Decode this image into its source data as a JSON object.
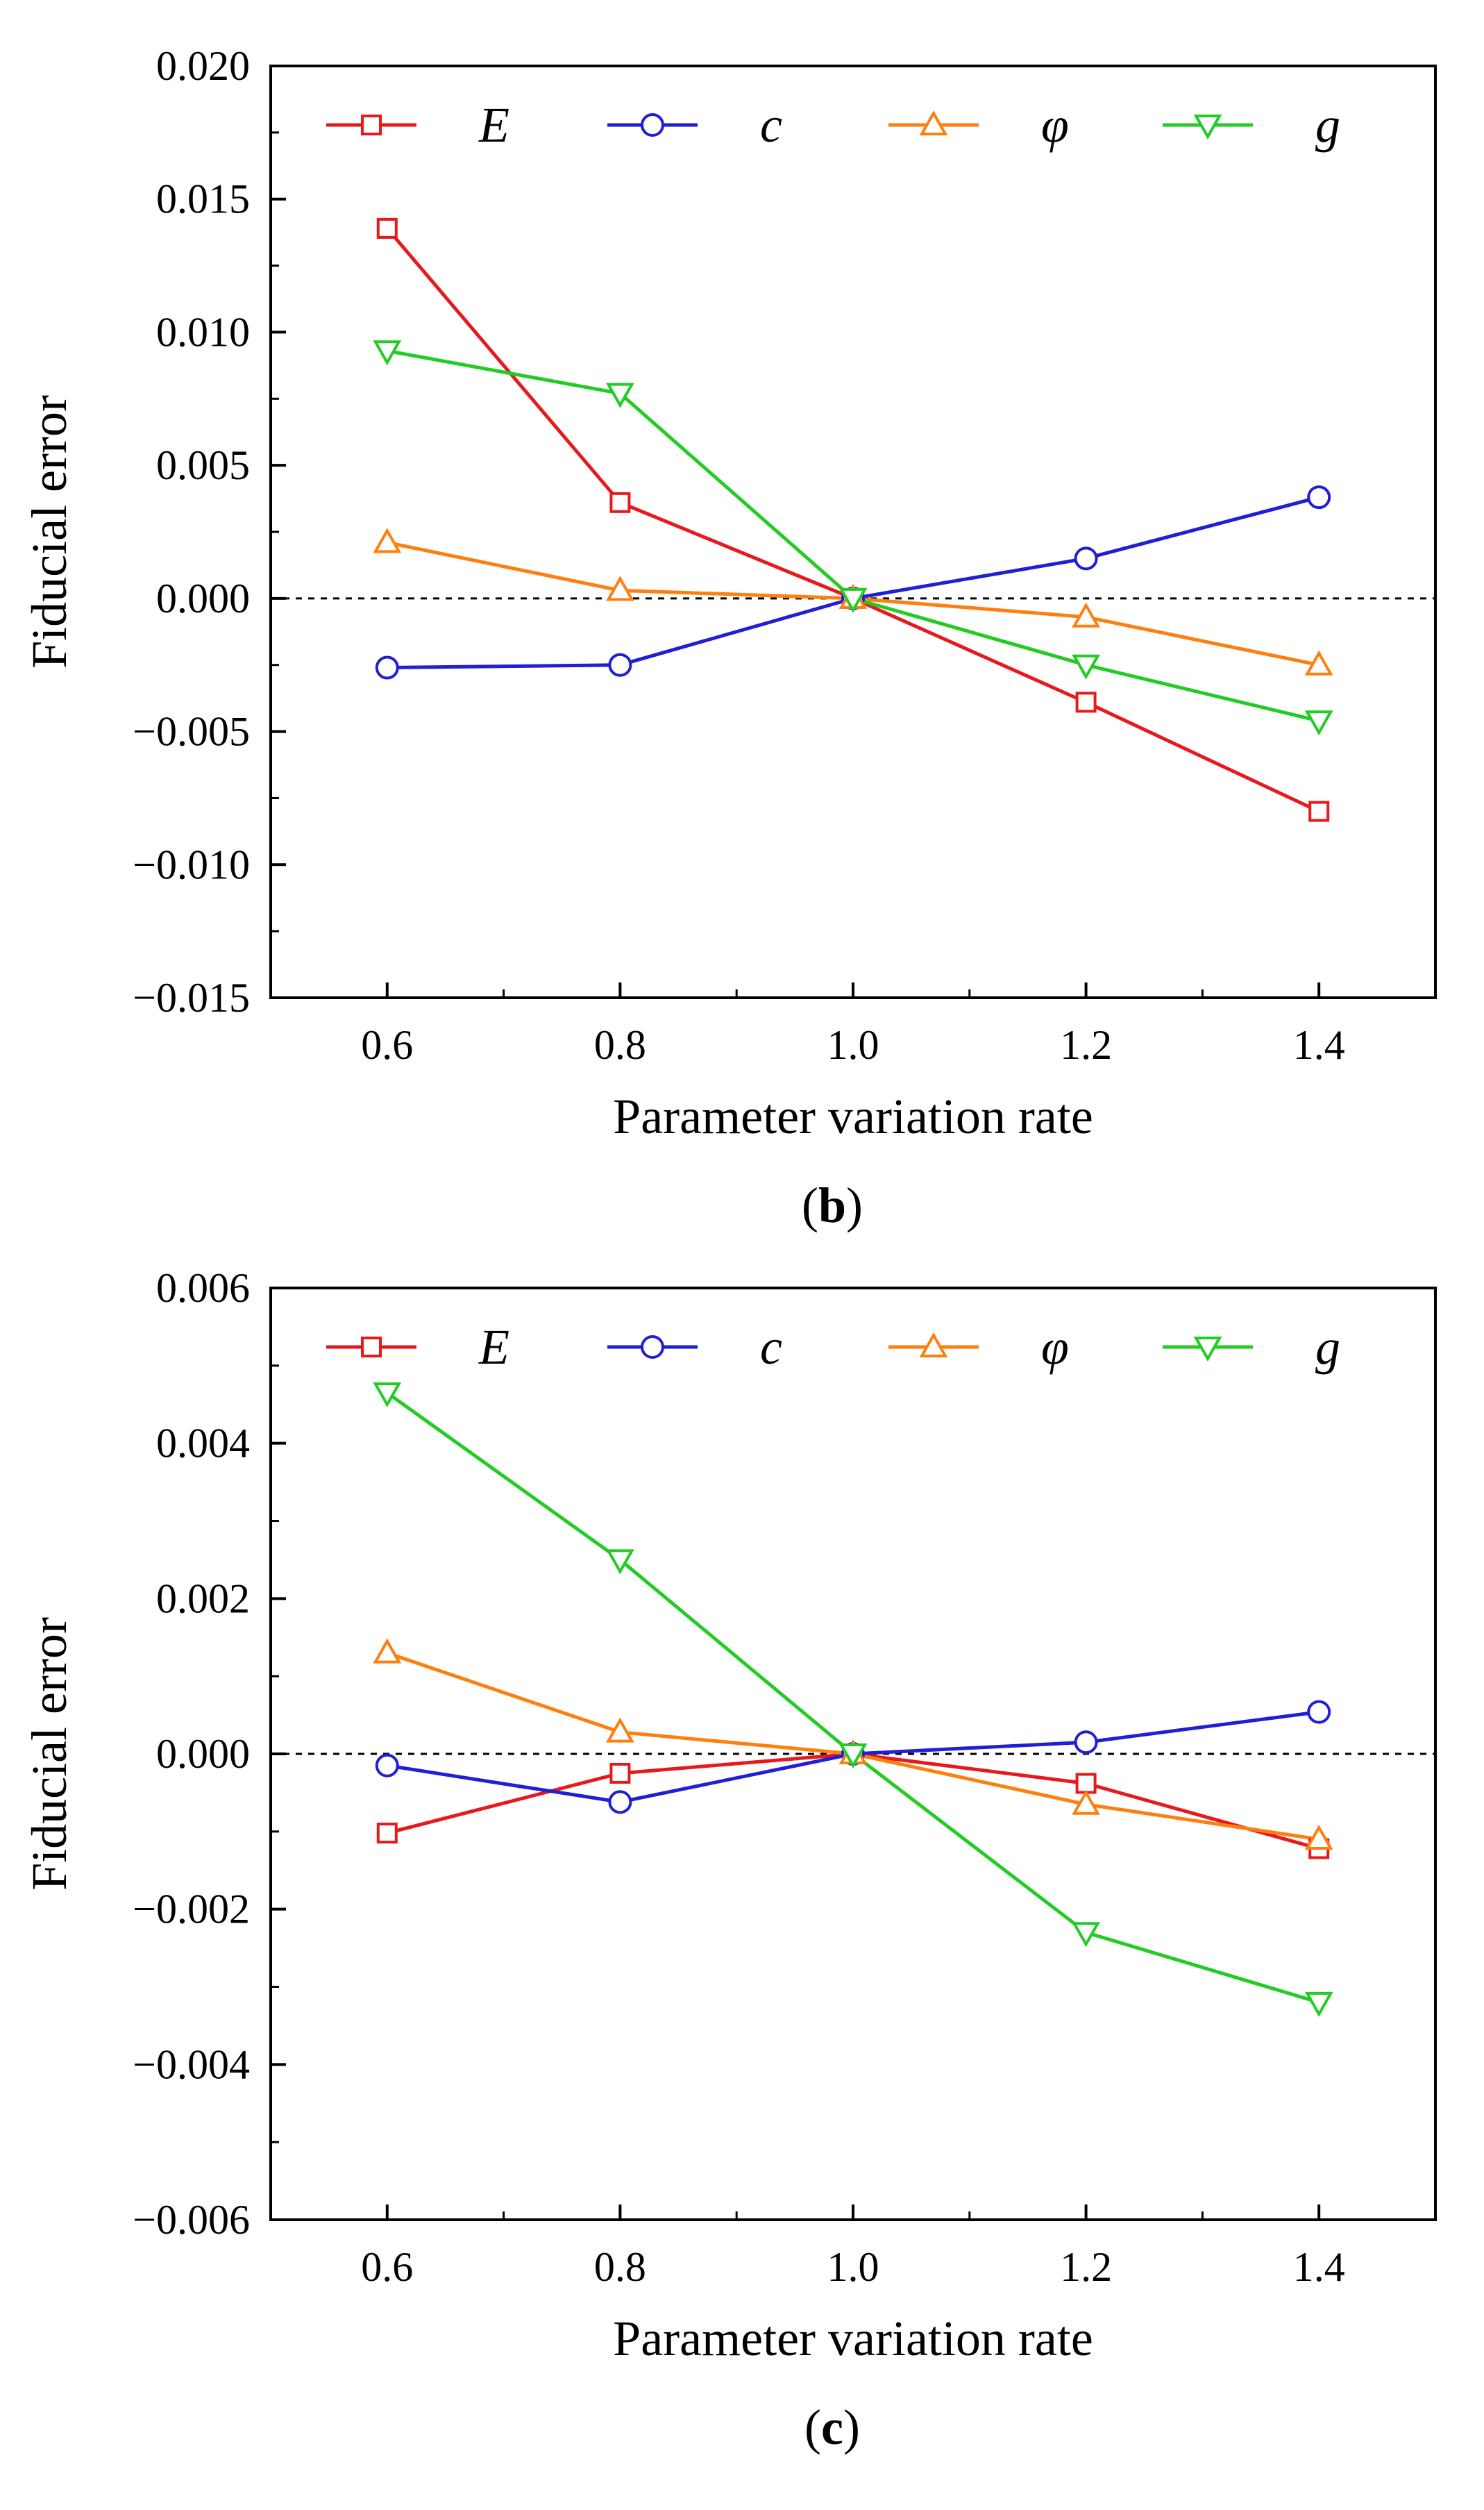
{
  "colors": {
    "E": "#e8191c",
    "c": "#1f1fd6",
    "phi": "#ff7f0e",
    "g": "#22cc22",
    "axis": "#000000",
    "zero_line": "#000000"
  },
  "chart_data": [
    {
      "type": "line",
      "panel": {
        "open": "(",
        "letter": "b",
        "close": ")"
      },
      "x": [
        0.6,
        0.8,
        1.0,
        1.2,
        1.4
      ],
      "x_tick_labels": [
        "0.6",
        "0.8",
        "1.0",
        "1.2",
        "1.4"
      ],
      "xlim": [
        0.5,
        1.5
      ],
      "xlabel": "Parameter variation rate",
      "ylabel": "Fiducial error",
      "ylim": [
        -0.015,
        0.02
      ],
      "y_ticks": [
        -0.015,
        -0.01,
        -0.005,
        0.0,
        0.005,
        0.01,
        0.015,
        0.02
      ],
      "y_tick_labels": [
        "−0.015",
        "−0.010",
        "−0.005",
        "0.000",
        "0.005",
        "0.010",
        "0.015",
        "0.020"
      ],
      "zero_line": true,
      "grid": false,
      "legend_position": "top",
      "series": [
        {
          "name": "E",
          "marker": "square",
          "color_key": "E",
          "values": [
            0.0139,
            0.0036,
            0.0,
            -0.0039,
            -0.008
          ]
        },
        {
          "name": "c",
          "marker": "circle",
          "color_key": "c",
          "values": [
            -0.0026,
            -0.0025,
            0.0,
            0.0015,
            0.0038
          ]
        },
        {
          "name": "φ",
          "marker": "triangle-up",
          "color_key": "phi",
          "values": [
            0.0021,
            0.0003,
            0.0,
            -0.0007,
            -0.0025
          ]
        },
        {
          "name": "g",
          "marker": "triangle-down",
          "color_key": "g",
          "values": [
            0.0093,
            0.0077,
            0.0,
            -0.0025,
            -0.0046
          ]
        }
      ]
    },
    {
      "type": "line",
      "panel": {
        "open": "(",
        "letter": "c",
        "close": ")"
      },
      "x": [
        0.6,
        0.8,
        1.0,
        1.2,
        1.4
      ],
      "x_tick_labels": [
        "0.6",
        "0.8",
        "1.0",
        "1.2",
        "1.4"
      ],
      "xlim": [
        0.5,
        1.5
      ],
      "xlabel": "Parameter variation rate",
      "ylabel": "Fiducial error",
      "ylim": [
        -0.006,
        0.006
      ],
      "y_ticks": [
        -0.006,
        -0.004,
        -0.002,
        0.0,
        0.002,
        0.004,
        0.006
      ],
      "y_tick_labels": [
        "−0.006",
        "−0.004",
        "−0.002",
        "0.000",
        "0.002",
        "0.004",
        "0.006"
      ],
      "zero_line": true,
      "grid": false,
      "legend_position": "top",
      "series": [
        {
          "name": "E",
          "marker": "square",
          "color_key": "E",
          "values": [
            -0.00102,
            -0.00025,
            0.0,
            -0.00038,
            -0.00122
          ]
        },
        {
          "name": "c",
          "marker": "circle",
          "color_key": "c",
          "values": [
            -0.00015,
            -0.00062,
            0.0,
            0.00015,
            0.00054
          ]
        },
        {
          "name": "φ",
          "marker": "triangle-up",
          "color_key": "phi",
          "values": [
            0.0013,
            0.00028,
            0.0,
            -0.00065,
            -0.0011
          ]
        },
        {
          "name": "g",
          "marker": "triangle-down",
          "color_key": "g",
          "values": [
            0.00465,
            0.0025,
            0.0,
            -0.0023,
            -0.0032
          ]
        }
      ]
    }
  ]
}
